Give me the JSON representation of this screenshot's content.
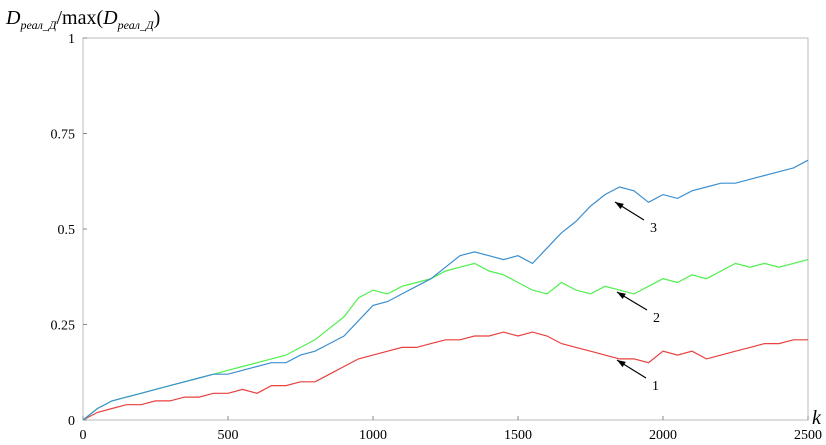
{
  "chart_data": {
    "type": "line",
    "ylabel_parts": [
      "D",
      "реал_Д",
      "/max(",
      "D",
      "реал_Д",
      ")"
    ],
    "xlabel": "k",
    "x": [
      0,
      50,
      100,
      150,
      200,
      250,
      300,
      350,
      400,
      450,
      500,
      550,
      600,
      650,
      700,
      750,
      800,
      850,
      900,
      950,
      1000,
      1050,
      1100,
      1150,
      1200,
      1250,
      1300,
      1350,
      1400,
      1450,
      1500,
      1550,
      1600,
      1650,
      1700,
      1750,
      1800,
      1850,
      1900,
      1950,
      2000,
      2050,
      2100,
      2150,
      2200,
      2250,
      2300,
      2350,
      2400,
      2450,
      2500
    ],
    "series": [
      {
        "color": "#e8413f",
        "values": [
          0,
          0.02,
          0.03,
          0.04,
          0.04,
          0.05,
          0.05,
          0.06,
          0.06,
          0.07,
          0.07,
          0.08,
          0.07,
          0.09,
          0.09,
          0.1,
          0.1,
          0.12,
          0.14,
          0.16,
          0.17,
          0.18,
          0.19,
          0.19,
          0.2,
          0.21,
          0.21,
          0.22,
          0.22,
          0.23,
          0.22,
          0.23,
          0.22,
          0.2,
          0.19,
          0.18,
          0.17,
          0.16,
          0.16,
          0.15,
          0.18,
          0.17,
          0.18,
          0.16,
          0.17,
          0.18,
          0.19,
          0.2,
          0.2,
          0.21,
          0.21
        ]
      },
      {
        "color": "#4ef04e",
        "values": [
          0,
          0.03,
          0.05,
          0.06,
          0.07,
          0.08,
          0.09,
          0.1,
          0.11,
          0.12,
          0.13,
          0.14,
          0.15,
          0.16,
          0.17,
          0.19,
          0.21,
          0.24,
          0.27,
          0.32,
          0.34,
          0.33,
          0.35,
          0.36,
          0.37,
          0.39,
          0.4,
          0.41,
          0.39,
          0.38,
          0.36,
          0.34,
          0.33,
          0.36,
          0.34,
          0.33,
          0.35,
          0.34,
          0.33,
          0.35,
          0.37,
          0.36,
          0.38,
          0.37,
          0.39,
          0.41,
          0.4,
          0.41,
          0.4,
          0.41,
          0.42
        ]
      },
      {
        "color": "#3d8fcf",
        "values": [
          0,
          0.03,
          0.05,
          0.06,
          0.07,
          0.08,
          0.09,
          0.1,
          0.11,
          0.12,
          0.12,
          0.13,
          0.14,
          0.15,
          0.15,
          0.17,
          0.18,
          0.2,
          0.22,
          0.26,
          0.3,
          0.31,
          0.33,
          0.35,
          0.37,
          0.4,
          0.43,
          0.44,
          0.43,
          0.42,
          0.43,
          0.41,
          0.45,
          0.49,
          0.52,
          0.56,
          0.59,
          0.61,
          0.6,
          0.57,
          0.59,
          0.58,
          0.6,
          0.61,
          0.62,
          0.62,
          0.63,
          0.64,
          0.65,
          0.66,
          0.68
        ]
      }
    ],
    "annotations": [
      "1",
      "2",
      "3"
    ],
    "xlim": [
      0,
      2500
    ],
    "xticks": [
      0,
      500,
      1000,
      1500,
      2000,
      2500
    ],
    "ylim": [
      0,
      1
    ],
    "yticks": [
      0,
      0.25,
      0.5,
      0.75,
      1
    ],
    "grid": false
  }
}
